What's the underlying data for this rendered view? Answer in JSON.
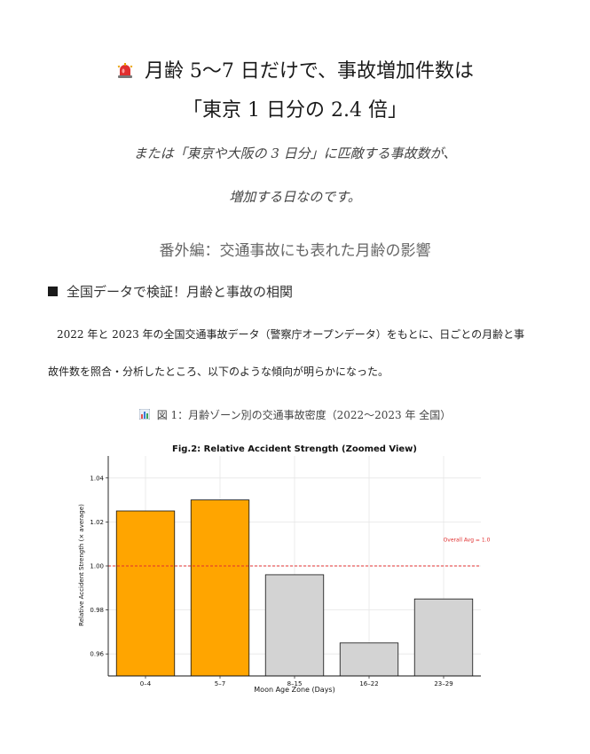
{
  "title": {
    "line1": "月齢 5〜7 日だけで、事故増加件数は",
    "line2": "「東京 1 日分の 2.4 倍」",
    "icon": "siren-icon"
  },
  "subtitle": {
    "line1": "または「東京や大阪の 3 日分」に匹敵する事故数が、",
    "line2": "増加する日なのです。"
  },
  "section_title": "番外編：交通事故にも表れた月齢の影響",
  "heading": "全国データで検証！月齢と事故の相関",
  "paragraph": {
    "line1": "2022 年と 2023 年の全国交通事故データ（警察庁オープンデータ）をもとに、日ごとの月齢と事",
    "line2": "故件数を照合・分析したところ、以下のような傾向が明らかになった。"
  },
  "figure_caption": "図 1：月齢ゾーン別の交通事故密度（2022〜2023 年 全国）",
  "colors": {
    "highlight": "#FFA500",
    "neutral": "#D3D3D3",
    "reference": "#E03030"
  },
  "chart_data": {
    "type": "bar",
    "title": "Fig.2: Relative Accident Strength (Zoomed View)",
    "xlabel": "Moon Age Zone (Days)",
    "ylabel": "Relative Accident Strength (× average)",
    "categories": [
      "0–4",
      "5–7",
      "8–15",
      "16–22",
      "23–29"
    ],
    "values": [
      1.025,
      1.03,
      0.996,
      0.965,
      0.985
    ],
    "highlighted": [
      true,
      true,
      false,
      false,
      false
    ],
    "ylim": [
      0.95,
      1.05
    ],
    "yticks": [
      "0.96",
      "0.98",
      "1.00",
      "1.02",
      "1.04"
    ],
    "reference_line": {
      "value": 1.0,
      "label": "Overall Avg = 1.0"
    },
    "grid": true
  }
}
